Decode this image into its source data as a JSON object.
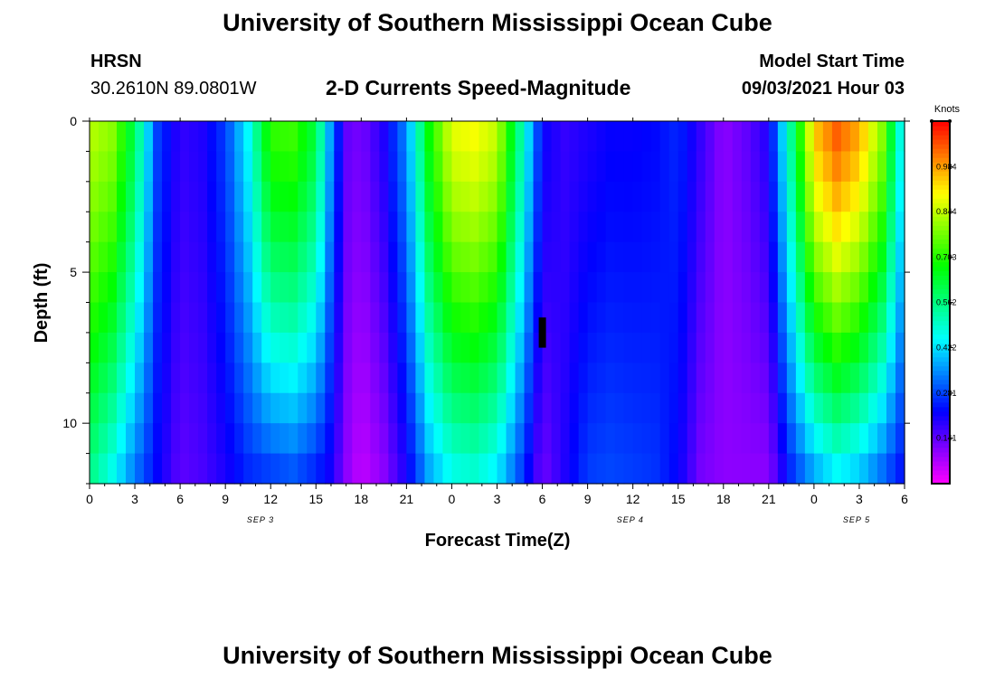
{
  "header": {
    "title_top": "University of Southern Mississippi Ocean Cube",
    "title_bottom": "University of Southern Mississippi Ocean Cube",
    "station": "HRSN",
    "coords": "30.2610N  89.0801W",
    "model_start_label": "Model Start Time",
    "model_start_value": "09/03/2021 Hour 03"
  },
  "chart_data": {
    "type": "heatmap",
    "title": "2-D Currents Speed-Magnitude",
    "xlabel": "Forecast Time(Z)",
    "ylabel": "Depth (ft)",
    "x_hours": [
      0,
      54
    ],
    "y_depth_ft": [
      0,
      12
    ],
    "x_ticks": [
      "0",
      "3",
      "6",
      "9",
      "12",
      "15",
      "18",
      "21",
      "0",
      "3",
      "6",
      "9",
      "12",
      "15",
      "18",
      "21",
      "0",
      "3",
      "6"
    ],
    "x_tick_hours": [
      0,
      3,
      6,
      9,
      12,
      15,
      18,
      21,
      24,
      27,
      30,
      33,
      36,
      39,
      42,
      45,
      48,
      51,
      54
    ],
    "y_ticks": [
      "0",
      "5",
      "10"
    ],
    "y_tick_values": [
      0,
      5,
      10
    ],
    "date_labels": [
      {
        "label": "SEP 3",
        "hour": 11.5
      },
      {
        "label": "SEP 4",
        "hour": 36
      },
      {
        "label": "SEP 5",
        "hour": 51
      }
    ],
    "colorbar": {
      "unit": "Knots",
      "range": [
        0.0,
        1.125
      ],
      "ticks": [
        "0.984",
        "0.844",
        "0.703",
        "0.562",
        "0.422",
        "0.281",
        "0.141"
      ],
      "tick_values": [
        0.984,
        0.844,
        0.703,
        0.562,
        0.422,
        0.281,
        0.141
      ]
    },
    "marker": {
      "hour": 30,
      "depth_from": 6.5,
      "depth_to": 7.5
    },
    "speed_profile_by_hour": [
      {
        "hour": 0,
        "surface": 0.84,
        "bottom": 0.55
      },
      {
        "hour": 1.5,
        "surface": 0.8,
        "bottom": 0.45
      },
      {
        "hour": 3,
        "surface": 0.6,
        "bottom": 0.32
      },
      {
        "hour": 4.5,
        "surface": 0.28,
        "bottom": 0.22
      },
      {
        "hour": 6,
        "surface": 0.18,
        "bottom": 0.14
      },
      {
        "hour": 7.5,
        "surface": 0.2,
        "bottom": 0.16
      },
      {
        "hour": 9,
        "surface": 0.28,
        "bottom": 0.2
      },
      {
        "hour": 10.5,
        "surface": 0.45,
        "bottom": 0.25
      },
      {
        "hour": 12,
        "surface": 0.72,
        "bottom": 0.26
      },
      {
        "hour": 13.5,
        "surface": 0.73,
        "bottom": 0.28
      },
      {
        "hour": 15,
        "surface": 0.62,
        "bottom": 0.24
      },
      {
        "hour": 16,
        "surface": 0.35,
        "bottom": 0.2
      },
      {
        "hour": 17,
        "surface": 0.14,
        "bottom": 0.1
      },
      {
        "hour": 18,
        "surface": 0.12,
        "bottom": 0.05
      },
      {
        "hour": 19.5,
        "surface": 0.2,
        "bottom": 0.1
      },
      {
        "hour": 21,
        "surface": 0.35,
        "bottom": 0.2
      },
      {
        "hour": 22.5,
        "surface": 0.68,
        "bottom": 0.36
      },
      {
        "hour": 24,
        "surface": 0.88,
        "bottom": 0.45
      },
      {
        "hour": 25.5,
        "surface": 0.9,
        "bottom": 0.47
      },
      {
        "hour": 27,
        "surface": 0.85,
        "bottom": 0.42
      },
      {
        "hour": 28.5,
        "surface": 0.55,
        "bottom": 0.28
      },
      {
        "hour": 30,
        "surface": 0.22,
        "bottom": 0.12
      },
      {
        "hour": 31.5,
        "surface": 0.18,
        "bottom": 0.2
      },
      {
        "hour": 33,
        "surface": 0.2,
        "bottom": 0.28
      },
      {
        "hour": 34.5,
        "surface": 0.22,
        "bottom": 0.29
      },
      {
        "hour": 36,
        "surface": 0.22,
        "bottom": 0.28
      },
      {
        "hour": 37.5,
        "surface": 0.23,
        "bottom": 0.27
      },
      {
        "hour": 39,
        "surface": 0.26,
        "bottom": 0.22
      },
      {
        "hour": 40.5,
        "surface": 0.18,
        "bottom": 0.12
      },
      {
        "hour": 42,
        "surface": 0.1,
        "bottom": 0.1
      },
      {
        "hour": 43.5,
        "surface": 0.14,
        "bottom": 0.1
      },
      {
        "hour": 45,
        "surface": 0.2,
        "bottom": 0.1
      },
      {
        "hour": 46.5,
        "surface": 0.55,
        "bottom": 0.25
      },
      {
        "hour": 48,
        "surface": 0.95,
        "bottom": 0.35
      },
      {
        "hour": 49.5,
        "surface": 1.05,
        "bottom": 0.42
      },
      {
        "hour": 51,
        "surface": 0.98,
        "bottom": 0.38
      },
      {
        "hour": 52.5,
        "surface": 0.8,
        "bottom": 0.3
      },
      {
        "hour": 54,
        "surface": 0.4,
        "bottom": 0.22
      }
    ]
  }
}
